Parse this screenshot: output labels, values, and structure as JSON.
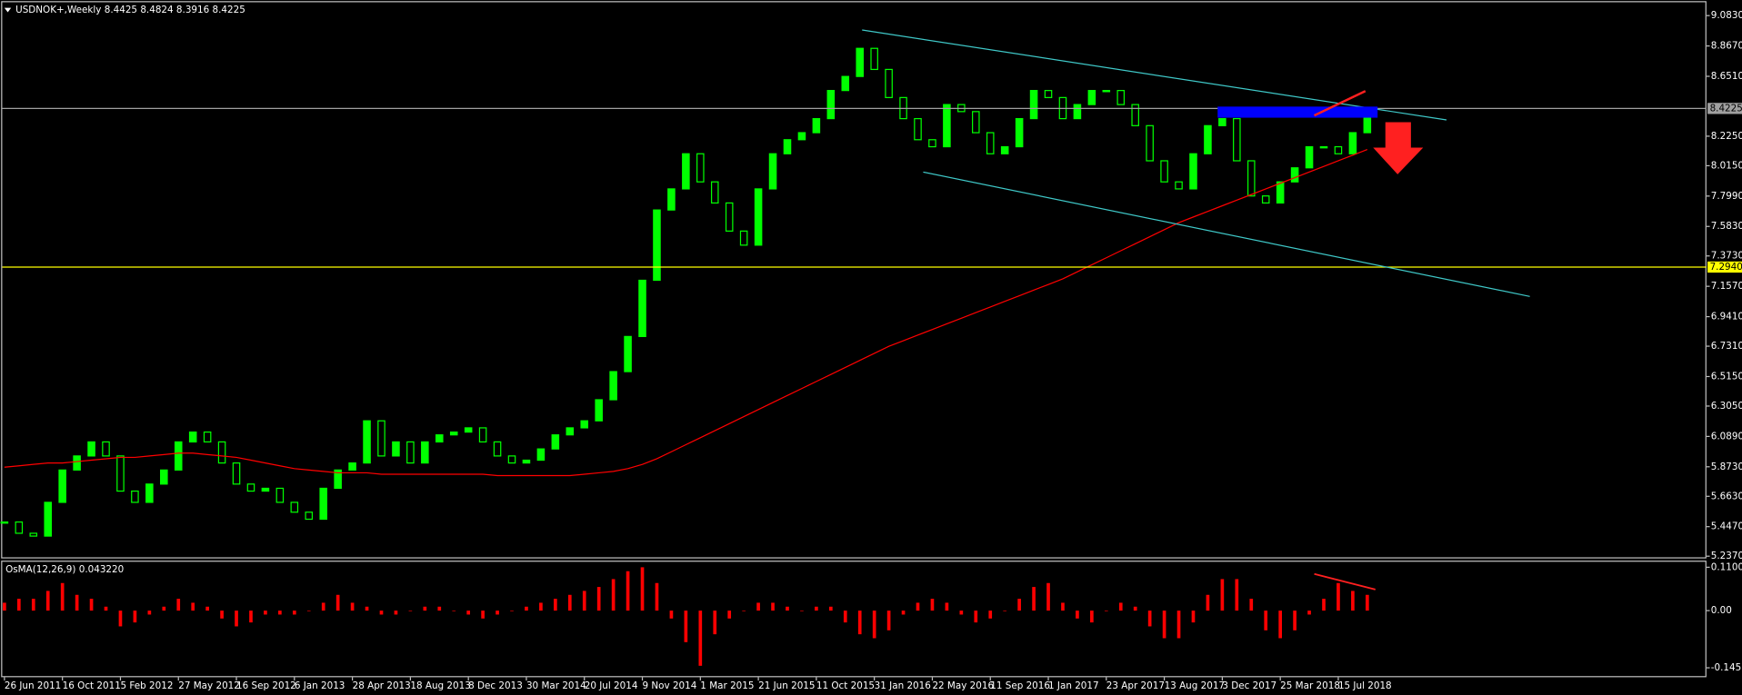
{
  "chart_data": [
    {
      "type": "candlestick",
      "title": "USDNOK+,Weekly  8.4425 8.4824 8.3916 8.4225",
      "categories": [
        "26 Jun 2011",
        null,
        null,
        null,
        "16 Oct 2011",
        null,
        null,
        null,
        "5 Feb 2012",
        null,
        null,
        null,
        "27 May 2012",
        null,
        null,
        null,
        "16 Sep 2012",
        null,
        null,
        null,
        "6 Jan 2013",
        null,
        null,
        null,
        "28 Apr 2013",
        null,
        null,
        null,
        "18 Aug 2013",
        null,
        null,
        null,
        "8 Dec 2013",
        null,
        null,
        null,
        "30 Mar 2014",
        null,
        null,
        null,
        "20 Jul 2014",
        null,
        null,
        null,
        "9 Nov 2014",
        null,
        null,
        null,
        "1 Mar 2015",
        null,
        null,
        null,
        "21 Jun 2015",
        null,
        null,
        null,
        "11 Oct 2015",
        null,
        null,
        null,
        "31 Jan 2016",
        null,
        null,
        null,
        "22 May 2016",
        null,
        null,
        null,
        "11 Sep 2016",
        null,
        null,
        null,
        "1 Jan 2017",
        null,
        null,
        null,
        "23 Apr 2017",
        null,
        null,
        null,
        "13 Aug 2017",
        null,
        null,
        null,
        "3 Dec 2017",
        null,
        null,
        null,
        "25 Mar 2018",
        null,
        null,
        null,
        "15 Jul 2018",
        null,
        null
      ],
      "values": [
        5.48,
        5.4,
        5.38,
        5.62,
        5.85,
        5.95,
        6.05,
        5.95,
        5.7,
        5.62,
        5.75,
        5.85,
        6.05,
        6.12,
        6.05,
        5.9,
        5.75,
        5.7,
        5.72,
        5.62,
        5.55,
        5.5,
        5.72,
        5.85,
        5.9,
        6.2,
        5.95,
        6.05,
        5.9,
        6.05,
        6.1,
        6.12,
        6.15,
        6.05,
        5.95,
        5.9,
        5.92,
        6.0,
        6.1,
        6.15,
        6.2,
        6.35,
        6.55,
        6.8,
        7.2,
        7.7,
        7.85,
        8.1,
        7.9,
        7.75,
        7.55,
        7.45,
        7.85,
        8.1,
        8.2,
        8.25,
        8.35,
        8.55,
        8.65,
        8.85,
        8.7,
        8.5,
        8.35,
        8.2,
        8.15,
        8.45,
        8.4,
        8.25,
        8.1,
        8.15,
        8.35,
        8.55,
        8.5,
        8.35,
        8.45,
        8.55,
        8.55,
        8.45,
        8.3,
        8.05,
        7.9,
        7.85,
        8.1,
        8.3,
        8.35,
        8.05,
        7.8,
        7.75,
        7.9,
        8.0,
        8.15,
        8.15,
        8.1,
        8.25,
        8.42
      ],
      "color": "#00ff00",
      "ma": {
        "color": "#ff0000",
        "values": [
          5.87,
          5.88,
          5.89,
          5.9,
          5.9,
          5.91,
          5.92,
          5.93,
          5.94,
          5.94,
          5.95,
          5.96,
          5.97,
          5.97,
          5.96,
          5.95,
          5.94,
          5.92,
          5.9,
          5.88,
          5.86,
          5.85,
          5.84,
          5.83,
          5.83,
          5.83,
          5.82,
          5.82,
          5.82,
          5.82,
          5.82,
          5.82,
          5.82,
          5.82,
          5.81,
          5.81,
          5.81,
          5.81,
          5.81,
          5.81,
          5.82,
          5.83,
          5.84,
          5.86,
          5.89,
          5.93,
          5.98,
          6.03,
          6.08,
          6.13,
          6.18,
          6.23,
          6.28,
          6.33,
          6.38,
          6.43,
          6.48,
          6.53,
          6.58,
          6.63,
          6.68,
          6.73,
          6.77,
          6.81,
          6.85,
          6.89,
          6.93,
          6.97,
          7.01,
          7.05,
          7.09,
          7.13,
          7.17,
          7.21,
          7.26,
          7.31,
          7.36,
          7.41,
          7.46,
          7.51,
          7.56,
          7.61,
          7.65,
          7.69,
          7.73,
          7.77,
          7.81,
          7.85,
          7.89,
          7.93,
          7.97,
          8.01,
          8.05,
          8.09,
          8.13
        ]
      },
      "ylim": [
        5.221,
        9.178
      ],
      "yticks": [
        {
          "value": 9.083,
          "label": "9.0830"
        },
        {
          "value": 8.867,
          "label": "8.8670"
        },
        {
          "value": 8.651,
          "label": "8.6510"
        },
        {
          "value": 8.225,
          "label": "8.2250"
        },
        {
          "value": 8.015,
          "label": "8.0150"
        },
        {
          "value": 7.799,
          "label": "7.7990"
        },
        {
          "value": 7.583,
          "label": "7.5830"
        },
        {
          "value": 7.373,
          "label": "7.3730"
        },
        {
          "value": 7.157,
          "label": "7.1570"
        },
        {
          "value": 6.941,
          "label": "6.9410"
        },
        {
          "value": 6.731,
          "label": "6.7310"
        },
        {
          "value": 6.515,
          "label": "6.5150"
        },
        {
          "value": 6.305,
          "label": "6.3050"
        },
        {
          "value": 6.089,
          "label": "6.0890"
        },
        {
          "value": 5.873,
          "label": "5.8730"
        },
        {
          "value": 5.663,
          "label": "5.6630"
        },
        {
          "value": 5.447,
          "label": "5.4470"
        },
        {
          "value": 5.237,
          "label": "5.2370"
        }
      ],
      "levels": [
        {
          "value": 8.4225,
          "color": "#a0a0a0"
        },
        {
          "value": {
            "value": 7.294,
            "label": "7.2940"
          },
          "color": "#ffff00"
        }
      ]
    },
    {
      "type": "bar",
      "title": "OsMA(12,26,9) 0.043220",
      "values": [
        0.02,
        0.03,
        0.03,
        0.05,
        0.07,
        0.04,
        0.03,
        0.01,
        -0.04,
        -0.03,
        -0.01,
        0.01,
        0.03,
        0.02,
        0.01,
        -0.02,
        -0.04,
        -0.03,
        -0.01,
        -0.01,
        -0.01,
        0.0,
        0.02,
        0.04,
        0.02,
        0.01,
        -0.01,
        -0.01,
        0.0,
        0.01,
        0.01,
        0.0,
        -0.01,
        -0.02,
        -0.01,
        0.0,
        0.01,
        0.02,
        0.03,
        0.04,
        0.05,
        0.06,
        0.08,
        0.1,
        0.11,
        0.07,
        -0.02,
        -0.08,
        -0.14,
        -0.06,
        -0.02,
        0.0,
        0.02,
        0.02,
        0.01,
        0.0,
        0.01,
        0.01,
        -0.03,
        -0.06,
        -0.07,
        -0.05,
        -0.01,
        0.02,
        0.03,
        0.02,
        -0.01,
        -0.03,
        -0.02,
        0.0,
        0.03,
        0.06,
        0.07,
        0.02,
        -0.02,
        -0.03,
        0.0,
        0.02,
        0.01,
        -0.04,
        -0.07,
        -0.07,
        -0.03,
        0.04,
        0.08,
        0.08,
        0.03,
        -0.05,
        -0.07,
        -0.05,
        -0.01,
        0.03,
        0.07,
        0.05,
        0.04
      ],
      "color": "#ff0000",
      "ylim": [
        -0.169,
        0.124
      ],
      "yticks": [
        0.110049,
        {
          "value": 0,
          "label": "0.00"
        },
        {
          "value": -0.1451,
          "label": "-0.14510"
        }
      ]
    }
  ]
}
